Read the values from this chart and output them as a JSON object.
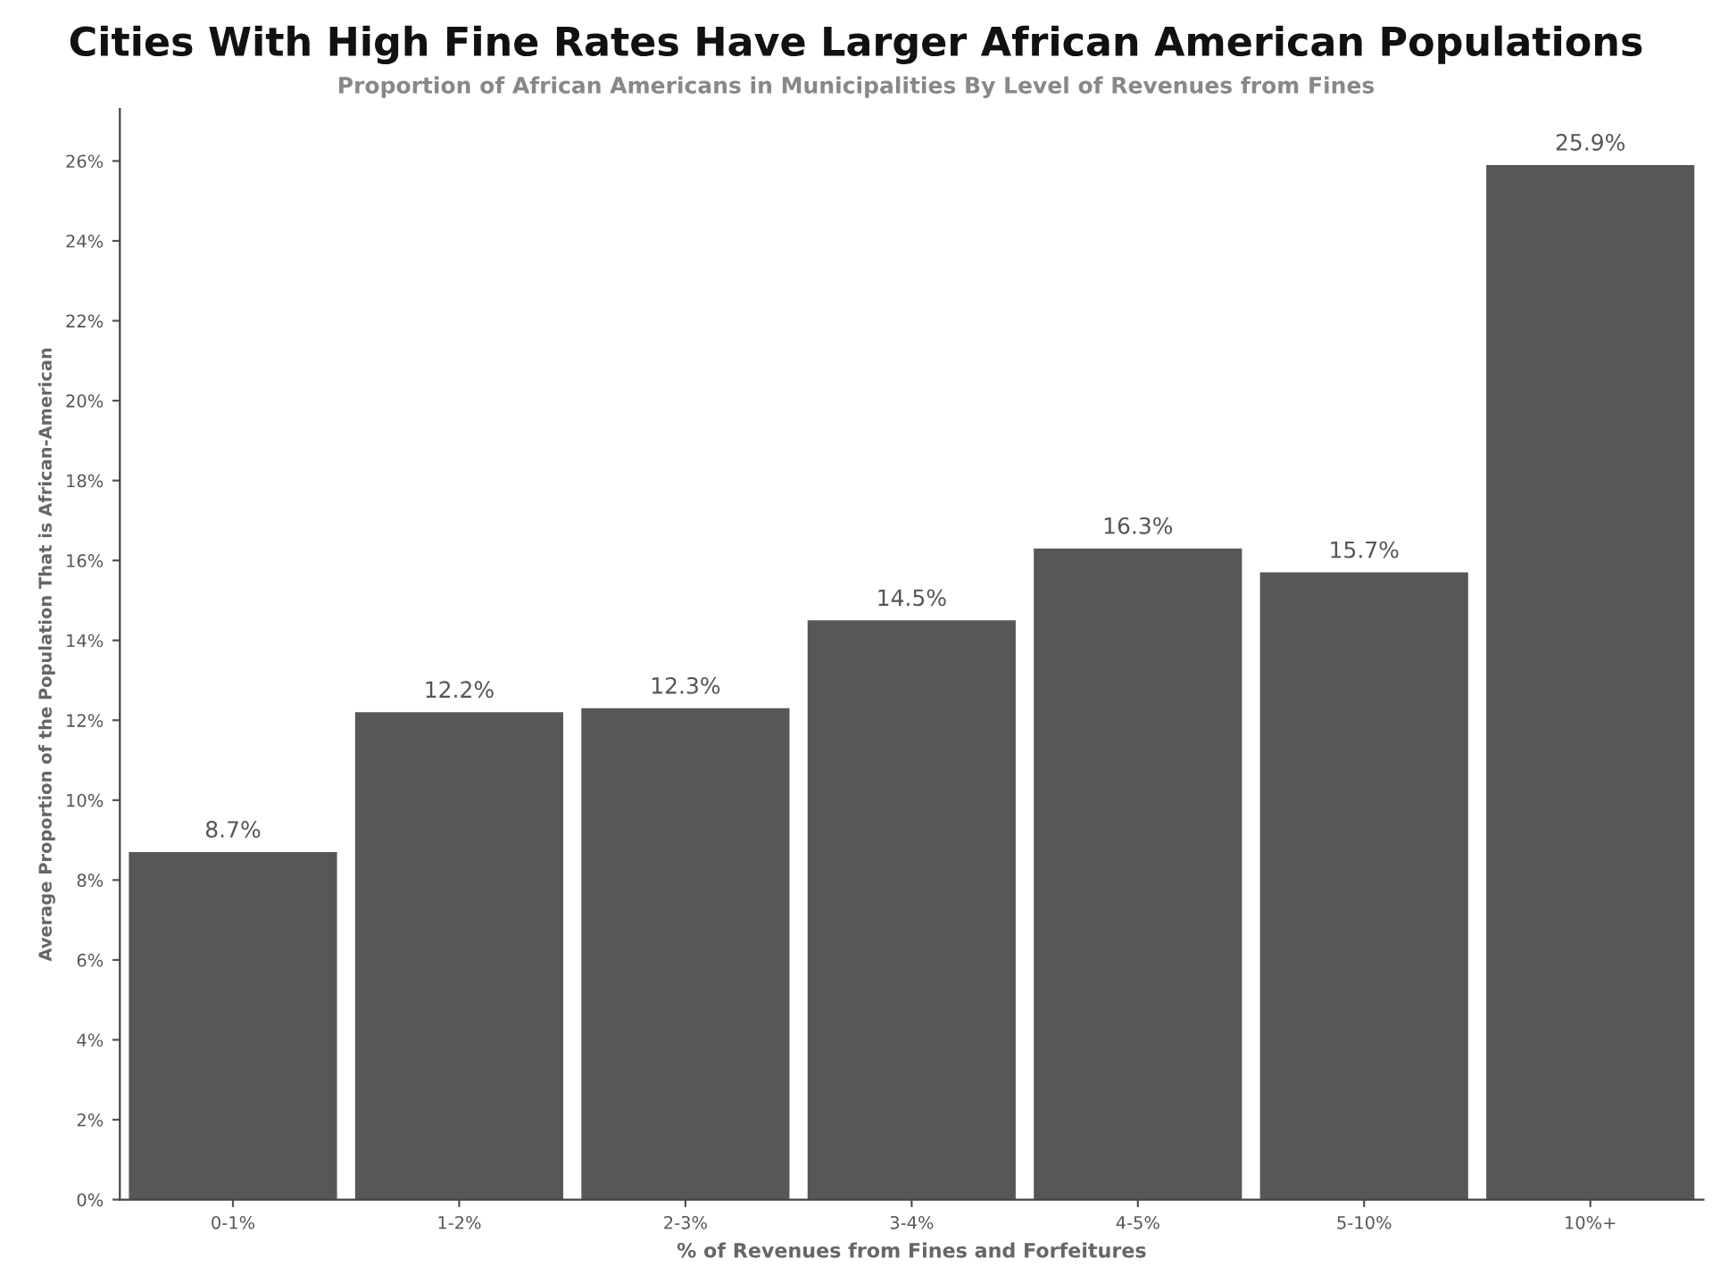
{
  "chart_data": {
    "type": "bar",
    "title": "Cities With High Fine Rates Have Larger African American Populations",
    "subtitle": "Proportion of African Americans in Municipalities By Level of Revenues from Fines",
    "xlabel": "% of Revenues from Fines and Forfeitures",
    "ylabel": "Average Proportion of the Population That is African-American",
    "categories": [
      "0-1%",
      "1-2%",
      "2-3%",
      "3-4%",
      "4-5%",
      "5-10%",
      "10%+"
    ],
    "values": [
      8.7,
      12.2,
      12.3,
      14.5,
      16.3,
      15.7,
      25.9
    ],
    "value_labels": [
      "8.7%",
      "12.2%",
      "12.3%",
      "14.5%",
      "16.3%",
      "15.7%",
      "25.9%"
    ],
    "color": "#575757",
    "ylim": [
      0,
      27.3
    ],
    "yticks": [
      {
        "value": 0,
        "label": "0%"
      },
      {
        "value": 2,
        "label": "2%"
      },
      {
        "value": 4,
        "label": "4%"
      },
      {
        "value": 6,
        "label": "6%"
      },
      {
        "value": 8,
        "label": "8%"
      },
      {
        "value": 10,
        "label": "10%"
      },
      {
        "value": 12,
        "label": "12%"
      },
      {
        "value": 14,
        "label": "14%"
      },
      {
        "value": 16,
        "label": "16%"
      },
      {
        "value": 18,
        "label": "18%"
      },
      {
        "value": 20,
        "label": "20%"
      },
      {
        "value": 22,
        "label": "22%"
      },
      {
        "value": 24,
        "label": "24%"
      },
      {
        "value": 26,
        "label": "26%"
      }
    ],
    "grid": false,
    "legend": false
  }
}
